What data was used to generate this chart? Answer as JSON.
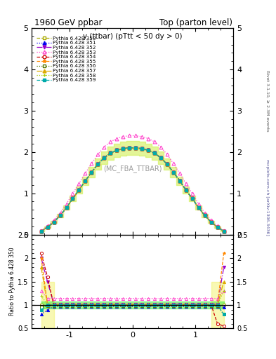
{
  "title_left": "1960 GeV ppbar",
  "title_right": "Top (parton level)",
  "plot_label": "y (ttbar) (pTtt < 50 dy > 0)",
  "mc_label": "(MC_FBA_TTBAR)",
  "right_label_top": "Rivet 3.1.10, ≥ 2.3M events",
  "right_label_bottom": "mcplots.cern.ch [arXiv:1306.3436]",
  "xlim": [
    -1.6,
    1.6
  ],
  "ylim_main": [
    0.0,
    5.0
  ],
  "ylim_ratio": [
    0.5,
    2.5
  ],
  "x_ticks": [
    -1,
    0,
    1
  ],
  "y_ticks_main": [
    0,
    1,
    2,
    3,
    4,
    5
  ],
  "y_ticks_ratio": [
    0.5,
    1.0,
    1.5,
    2.0,
    2.5
  ],
  "series": [
    {
      "label": "Pythia 6.428 350",
      "color": "#aaaa00",
      "marker": "s",
      "linestyle": "--",
      "hollow": true
    },
    {
      "label": "Pythia 6.428 351",
      "color": "#0000ee",
      "marker": "^",
      "linestyle": ":",
      "hollow": false
    },
    {
      "label": "Pythia 6.428 352",
      "color": "#9900cc",
      "marker": "v",
      "linestyle": "-.",
      "hollow": false
    },
    {
      "label": "Pythia 6.428 353",
      "color": "#ff44cc",
      "marker": "^",
      "linestyle": ":",
      "hollow": true
    },
    {
      "label": "Pythia 6.428 354",
      "color": "#cc0000",
      "marker": "o",
      "linestyle": "--",
      "hollow": true
    },
    {
      "label": "Pythia 6.428 355",
      "color": "#ff8800",
      "marker": "*",
      "linestyle": "--",
      "hollow": false
    },
    {
      "label": "Pythia 6.428 356",
      "color": "#557700",
      "marker": "s",
      "linestyle": ":",
      "hollow": true
    },
    {
      "label": "Pythia 6.428 357",
      "color": "#ddaa00",
      "marker": "^",
      "linestyle": "-.",
      "hollow": false
    },
    {
      "label": "Pythia 6.428 358",
      "color": "#aacc00",
      "marker": "+",
      "linestyle": ":",
      "hollow": false
    },
    {
      "label": "Pythia 6.428 359",
      "color": "#00aaaa",
      "marker": "s",
      "linestyle": "--",
      "hollow": false
    }
  ],
  "x_edges": [
    -1.5,
    -1.4,
    -1.3,
    -1.2,
    -1.1,
    -1.0,
    -0.9,
    -0.8,
    -0.7,
    -0.6,
    -0.5,
    -0.4,
    -0.3,
    -0.2,
    -0.1,
    0.0,
    0.1,
    0.2,
    0.3,
    0.4,
    0.5,
    0.6,
    0.7,
    0.8,
    0.9,
    1.0,
    1.1,
    1.2,
    1.3,
    1.4,
    1.5
  ],
  "base_vals": [
    0.08,
    0.18,
    0.3,
    0.46,
    0.65,
    0.87,
    1.08,
    1.3,
    1.51,
    1.7,
    1.86,
    1.97,
    2.04,
    2.08,
    2.1,
    2.1,
    2.08,
    2.04,
    1.97,
    1.86,
    1.7,
    1.51,
    1.3,
    1.08,
    0.87,
    0.65,
    0.46,
    0.3,
    0.18,
    0.08
  ],
  "scale_353": 1.14,
  "band_lo": 0.92,
  "band_hi": 1.08,
  "band_main_lo": 0.92,
  "band_main_hi": 1.08,
  "band_color_main": "#ccee44",
  "band_color_ratio": "#44ee44",
  "band_alpha": 0.55,
  "ratio_ylabel": "Ratio to Pythia 6.428 350"
}
